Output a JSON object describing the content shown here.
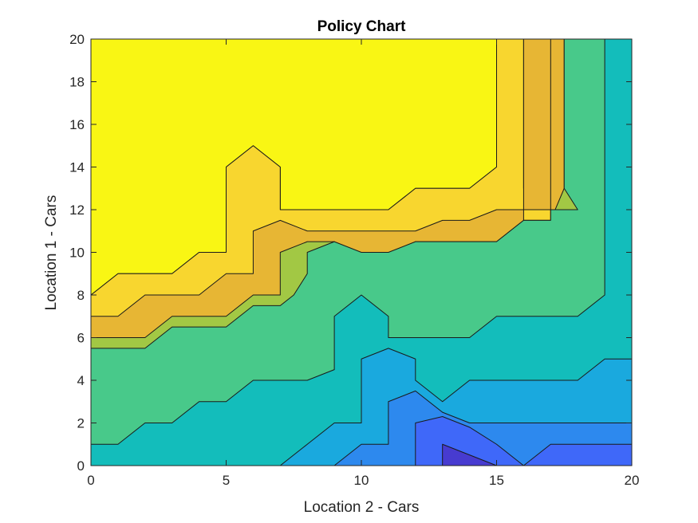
{
  "chart_data": {
    "type": "contour",
    "title": "Policy Chart",
    "xlabel": "Location 2 - Cars",
    "ylabel": "Location 1 - Cars",
    "xlim": [
      0,
      20
    ],
    "ylim": [
      0,
      20
    ],
    "xticks": [
      0,
      5,
      10,
      15,
      20
    ],
    "yticks": [
      0,
      2,
      4,
      6,
      8,
      10,
      12,
      14,
      16,
      18,
      20
    ],
    "grid": false,
    "levels": [
      {
        "name": "L0",
        "color": "#473bd0",
        "boundary": [
          [
            13,
            0
          ],
          [
            13,
            1
          ],
          [
            14,
            0.5
          ],
          [
            15,
            0
          ],
          [
            16,
            0
          ]
        ]
      },
      {
        "name": "L1",
        "color": "#3f68f9",
        "boundary": [
          [
            12,
            0
          ],
          [
            12,
            2
          ],
          [
            13,
            2.3
          ],
          [
            14,
            1.8
          ],
          [
            15,
            1
          ],
          [
            16,
            0
          ],
          [
            17,
            1
          ],
          [
            20,
            1
          ],
          [
            20,
            0
          ]
        ]
      },
      {
        "name": "L2",
        "color": "#2d89ee",
        "boundary": [
          [
            9,
            0
          ],
          [
            10,
            1
          ],
          [
            11,
            1
          ],
          [
            11,
            3
          ],
          [
            12,
            3.5
          ],
          [
            13,
            2.5
          ],
          [
            14,
            2
          ],
          [
            15,
            2
          ],
          [
            16,
            2
          ],
          [
            20,
            2
          ],
          [
            20,
            0
          ]
        ]
      },
      {
        "name": "L3",
        "color": "#1aa9de",
        "boundary": [
          [
            7,
            0
          ],
          [
            8,
            1
          ],
          [
            9,
            2
          ],
          [
            10,
            2
          ],
          [
            10,
            5
          ],
          [
            11,
            5.5
          ],
          [
            12,
            5
          ],
          [
            12,
            4
          ],
          [
            13,
            3
          ],
          [
            14,
            4
          ],
          [
            18,
            4
          ],
          [
            19,
            5
          ],
          [
            20,
            5
          ],
          [
            20,
            0
          ]
        ]
      },
      {
        "name": "L4",
        "color": "#13bdbb",
        "boundary": [
          [
            0,
            0
          ],
          [
            0,
            1
          ],
          [
            1,
            1
          ],
          [
            2,
            2
          ],
          [
            3,
            2
          ],
          [
            4,
            3
          ],
          [
            5,
            3
          ],
          [
            6,
            4
          ],
          [
            8,
            4
          ],
          [
            9,
            4.5
          ],
          [
            9,
            7
          ],
          [
            10,
            8
          ],
          [
            11,
            7
          ],
          [
            11,
            6
          ],
          [
            12,
            6
          ],
          [
            14,
            6
          ],
          [
            15,
            7
          ],
          [
            18,
            7
          ],
          [
            19,
            8
          ],
          [
            19,
            20
          ],
          [
            20,
            20
          ],
          [
            20,
            0
          ]
        ]
      },
      {
        "name": "L5",
        "color": "#48c98a",
        "boundary": [
          [
            0,
            0
          ],
          [
            0,
            5.5
          ],
          [
            2,
            5.5
          ],
          [
            3,
            6.5
          ],
          [
            5,
            6.5
          ],
          [
            6,
            7.5
          ],
          [
            7,
            7.5
          ],
          [
            7.5,
            8
          ],
          [
            8,
            9
          ],
          [
            8,
            10
          ],
          [
            9,
            10.5
          ],
          [
            10,
            10
          ],
          [
            11,
            10
          ],
          [
            12,
            10.5
          ],
          [
            13,
            10.5
          ],
          [
            15,
            10.5
          ],
          [
            16,
            11.5
          ],
          [
            17,
            11.5
          ],
          [
            17,
            12
          ],
          [
            18,
            12
          ],
          [
            17.5,
            13
          ],
          [
            17.5,
            20
          ],
          [
            20,
            20
          ],
          [
            20,
            0
          ]
        ]
      },
      {
        "name": "L6",
        "color": "#a2c844",
        "boundary": [
          [
            0,
            0
          ],
          [
            0,
            6
          ],
          [
            2,
            6
          ],
          [
            3,
            7
          ],
          [
            5,
            7
          ],
          [
            6,
            8
          ],
          [
            7,
            8
          ],
          [
            7,
            10
          ],
          [
            8,
            10.5
          ],
          [
            9,
            10.5
          ],
          [
            10,
            9.5
          ],
          [
            11,
            9.5
          ],
          [
            12,
            10.5
          ],
          [
            15,
            10.5
          ],
          [
            16,
            11.5
          ],
          [
            17,
            11.5
          ],
          [
            17.5,
            13
          ],
          [
            17.5,
            20
          ],
          [
            20,
            20
          ],
          [
            20,
            0
          ]
        ]
      },
      {
        "name": "L7",
        "color": "#e7b634",
        "boundary": [
          [
            0,
            0
          ],
          [
            0,
            7
          ],
          [
            1,
            7
          ],
          [
            2,
            8
          ],
          [
            4,
            8
          ],
          [
            5,
            9
          ],
          [
            6,
            9
          ],
          [
            6,
            11
          ],
          [
            7,
            11.5
          ],
          [
            8,
            11
          ],
          [
            12,
            11
          ],
          [
            13,
            11.5
          ],
          [
            14,
            11.5
          ],
          [
            15,
            12
          ],
          [
            16,
            12
          ],
          [
            16,
            20
          ],
          [
            17,
            20
          ],
          [
            17,
            12
          ],
          [
            16,
            12
          ],
          [
            16,
            11.5
          ],
          [
            17,
            11.5
          ],
          [
            17,
            20
          ],
          [
            20,
            20
          ],
          [
            20,
            0
          ]
        ]
      },
      {
        "name": "L8",
        "color": "#f8d62f",
        "boundary": [
          [
            0,
            0
          ],
          [
            0,
            8
          ],
          [
            1,
            9
          ],
          [
            3,
            9
          ],
          [
            4,
            10
          ],
          [
            5,
            10
          ],
          [
            5,
            14
          ],
          [
            6,
            15
          ],
          [
            7,
            14
          ],
          [
            7,
            12
          ],
          [
            11,
            12
          ],
          [
            12,
            13
          ],
          [
            14,
            13
          ],
          [
            15,
            14
          ],
          [
            15,
            20
          ],
          [
            16,
            20
          ],
          [
            16,
            13
          ],
          [
            17,
            13
          ],
          [
            17,
            20
          ],
          [
            20,
            20
          ],
          [
            20,
            0
          ]
        ]
      },
      {
        "name": "L9",
        "color": "#f9f614",
        "boundary": [
          [
            0,
            20
          ],
          [
            15,
            20
          ],
          [
            15,
            14
          ],
          [
            14,
            13
          ],
          [
            12,
            13
          ],
          [
            11,
            12
          ],
          [
            7,
            12
          ],
          [
            7,
            14
          ],
          [
            6,
            15
          ],
          [
            5,
            14
          ],
          [
            5,
            10
          ],
          [
            4,
            10
          ],
          [
            3,
            9
          ],
          [
            1,
            9
          ],
          [
            0,
            8
          ]
        ]
      }
    ]
  }
}
